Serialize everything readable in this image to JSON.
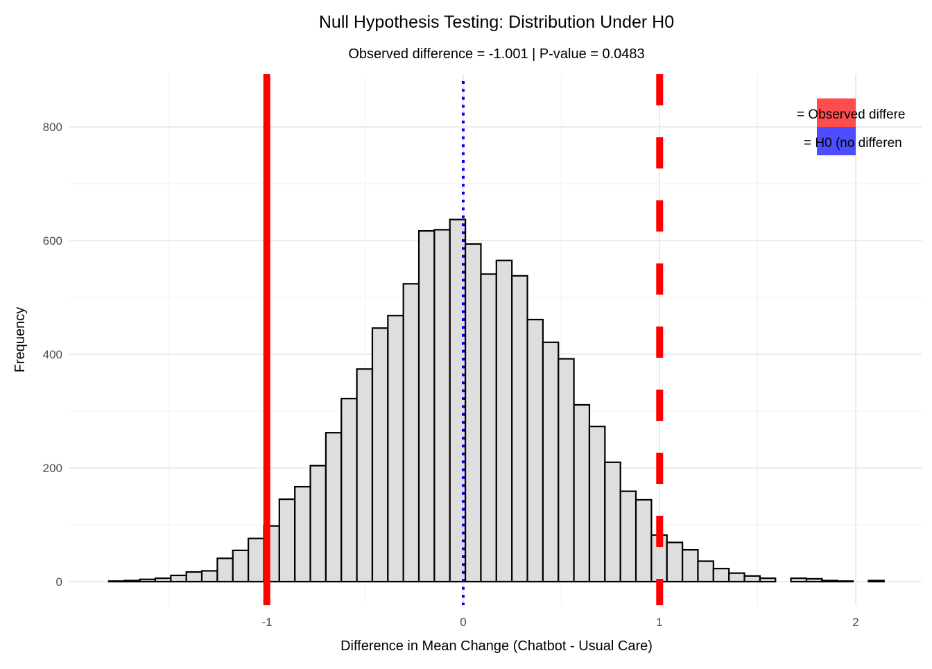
{
  "chart_data": {
    "type": "bar",
    "subtype": "histogram",
    "title": "Null Hypothesis Testing: Distribution Under H0",
    "subtitle": "Observed difference = -1.001 | P-value = 0.0483",
    "xlabel": "Difference in Mean Change (Chatbot - Usual Care)",
    "ylabel": "Frequency",
    "xlim": [
      -1.95,
      2.35
    ],
    "ylim": [
      -40,
      890
    ],
    "x_ticks": [
      "-1",
      "0",
      "1",
      "2"
    ],
    "x_tick_values": [
      -1,
      0,
      1,
      2
    ],
    "y_ticks": [
      "0",
      "200",
      "400",
      "600",
      "800"
    ],
    "y_tick_values": [
      0,
      200,
      400,
      600,
      800
    ],
    "grid": true,
    "bin_start": -1.806,
    "bin_width": 0.079,
    "values": [
      1,
      2,
      4,
      6,
      11,
      17,
      19,
      41,
      55,
      76,
      98,
      145,
      167,
      204,
      262,
      322,
      374,
      446,
      468,
      524,
      617,
      619,
      637,
      594,
      541,
      565,
      538,
      461,
      421,
      392,
      311,
      273,
      210,
      159,
      144,
      82,
      69,
      56,
      36,
      23,
      15,
      10,
      6,
      0,
      6,
      5,
      2,
      1,
      0,
      2
    ],
    "bar_fill": "#DEDEDE",
    "bar_outline": "#000000",
    "vlines": [
      {
        "x": -1.001,
        "color": "#FF0000",
        "style": "solid"
      },
      {
        "x": 1.001,
        "color": "#FF0000",
        "style": "dashed"
      },
      {
        "x": 0,
        "color": "#0000FF",
        "style": "dotted"
      }
    ],
    "legend": {
      "placement": "top-right",
      "entries": [
        {
          "label": "= Observed differe",
          "color": "#FF4D4D"
        },
        {
          "label": "= H0 (no differen",
          "color": "#4D4DFF"
        }
      ]
    }
  }
}
